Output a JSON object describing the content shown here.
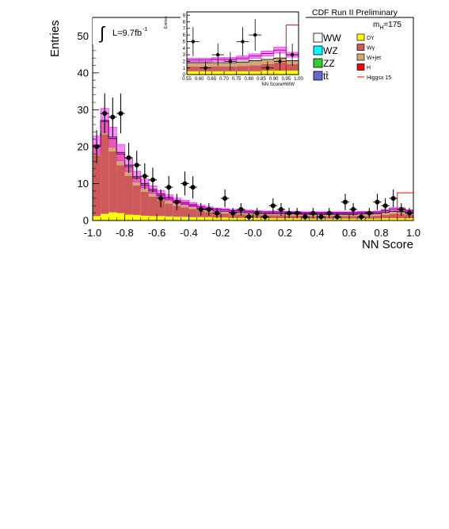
{
  "header": {
    "title": "CDF Run II Preliminary",
    "mass_label": "m",
    "mass_sub": "H",
    "mass_value": "=175"
  },
  "luminosity": {
    "integral_symbol": "∫",
    "text": "L=9.7fb",
    "sup": "-1"
  },
  "legend": {
    "entries": [
      {
        "label": "WW",
        "color": "#ffffff"
      },
      {
        "label": "WZ",
        "color": "#00ffff"
      },
      {
        "label": "ZZ",
        "color": "#33cc33"
      },
      {
        "label": "tt̄",
        "color": "#6666cc"
      },
      {
        "label": "DY",
        "color": "#ffff00"
      },
      {
        "label": "Wγ",
        "color": "#cc5a5a"
      },
      {
        "label": "W+jet",
        "color": "#d2a77a"
      },
      {
        "label": "H",
        "color": "#ff0000"
      },
      {
        "label": "Higgsx 15",
        "color": "#ff0000"
      }
    ]
  },
  "chart_data": [
    {
      "type": "histogram",
      "title": "",
      "xlabel": "NN Score",
      "ylabel": "Entries",
      "xlim": [
        -1.0,
        1.0
      ],
      "ylim": [
        0,
        55
      ],
      "x_ticks": [
        "-1.0",
        "-0.8",
        "-0.6",
        "-0.4",
        "-0.2",
        "-0.0",
        "0.2",
        "0.4",
        "0.6",
        "0.8",
        "1.0"
      ],
      "y_ticks": [
        "0",
        "10",
        "20",
        "30",
        "40",
        "50"
      ],
      "bin_edges": [
        -1.0,
        -0.95,
        -0.9,
        -0.85,
        -0.8,
        -0.75,
        -0.7,
        -0.65,
        -0.6,
        -0.55,
        -0.5,
        -0.45,
        -0.4,
        -0.35,
        -0.3,
        -0.25,
        -0.2,
        -0.15,
        -0.1,
        -0.05,
        0.0,
        0.05,
        0.1,
        0.15,
        0.2,
        0.25,
        0.3,
        0.35,
        0.4,
        0.45,
        0.5,
        0.55,
        0.6,
        0.65,
        0.7,
        0.75,
        0.8,
        0.85,
        0.9,
        0.95,
        1.0
      ],
      "series": [
        {
          "name": "DY",
          "color": "#ffff00",
          "values": [
            1.2,
            1.8,
            2.2,
            2.0,
            1.6,
            1.5,
            1.3,
            1.2,
            1.2,
            1.1,
            1.0,
            1.0,
            0.9,
            0.9,
            0.9,
            0.8,
            0.8,
            0.7,
            0.7,
            0.7,
            0.7,
            0.6,
            0.6,
            0.6,
            0.6,
            0.6,
            0.5,
            0.5,
            0.5,
            0.5,
            0.5,
            0.5,
            0.5,
            0.5,
            0.5,
            0.5,
            0.6,
            0.6,
            0.6,
            0.6
          ]
        },
        {
          "name": "Wγ",
          "color": "#cc5a5a",
          "values": [
            16.5,
            21.5,
            16.5,
            13.0,
            10.5,
            8.0,
            6.5,
            5.3,
            4.3,
            3.5,
            3.0,
            2.6,
            2.2,
            1.7,
            1.4,
            1.2,
            1.1,
            1.0,
            1.0,
            0.9,
            0.8,
            0.8,
            0.8,
            0.8,
            0.7,
            0.7,
            0.7,
            0.7,
            0.7,
            0.7,
            0.7,
            0.7,
            0.7,
            0.7,
            0.7,
            0.8,
            0.9,
            1.2,
            1.2,
            1.0
          ]
        },
        {
          "name": "W+jet",
          "color": "#d2a77a",
          "values": [
            2.5,
            3.5,
            3.5,
            3.0,
            2.5,
            2.0,
            1.8,
            1.5,
            1.3,
            1.2,
            1.0,
            0.9,
            0.8,
            0.7,
            0.6,
            0.6,
            0.6,
            0.6,
            0.5,
            0.5,
            0.5,
            0.5,
            0.5,
            0.5,
            0.5,
            0.5,
            0.5,
            0.5,
            0.5,
            0.5,
            0.5,
            0.5,
            0.5,
            0.6,
            0.6,
            0.6,
            0.7,
            0.7,
            0.6,
            0.5
          ]
        },
        {
          "name": "WW",
          "color": "#ffffff",
          "values": [
            0.2,
            0.3,
            0.4,
            0.4,
            0.4,
            0.4,
            0.4,
            0.4,
            0.4,
            0.4,
            0.4,
            0.4,
            0.4,
            0.4,
            0.4,
            0.4,
            0.4,
            0.4,
            0.4,
            0.4,
            0.4,
            0.4,
            0.4,
            0.4,
            0.4,
            0.4,
            0.4,
            0.4,
            0.4,
            0.4,
            0.4,
            0.4,
            0.4,
            0.4,
            0.4,
            0.4,
            0.5,
            0.6,
            0.7,
            0.5
          ]
        },
        {
          "name": "Higgsx 15",
          "color": "#ff0000",
          "values": [
            0.0,
            0.0,
            0.0,
            0.0,
            0.0,
            0.0,
            0.0,
            0.0,
            0.0,
            0.0,
            0.0,
            0.0,
            0.0,
            0.0,
            0.0,
            0.0,
            0.0,
            0.0,
            0.0,
            0.0,
            0.0,
            0.0,
            0.0,
            0.0,
            0.0,
            0.0,
            0.0,
            0.0,
            0.0,
            0.0,
            0.0,
            0.0,
            0.0,
            0.0,
            0.0,
            0.0,
            0.0,
            0.0,
            7.5,
            7.5
          ]
        }
      ],
      "uncertainty_band": {
        "color": "#ff00ff",
        "relative": 0.12
      },
      "data_points": {
        "x": [
          -0.975,
          -0.925,
          -0.875,
          -0.825,
          -0.775,
          -0.725,
          -0.675,
          -0.625,
          -0.575,
          -0.525,
          -0.475,
          -0.425,
          -0.375,
          -0.325,
          -0.275,
          -0.225,
          -0.175,
          -0.125,
          -0.075,
          -0.025,
          0.025,
          0.075,
          0.125,
          0.175,
          0.225,
          0.275,
          0.325,
          0.375,
          0.425,
          0.475,
          0.525,
          0.575,
          0.625,
          0.675,
          0.725,
          0.775,
          0.825,
          0.875,
          0.925,
          0.975
        ],
        "y": [
          20,
          29,
          28,
          29,
          17,
          15,
          12,
          11,
          6,
          9,
          5,
          10,
          9,
          3,
          3,
          2,
          6,
          2,
          3,
          1,
          2,
          1,
          4,
          3,
          2,
          2,
          1,
          2,
          1,
          2,
          1,
          5,
          3,
          1,
          2,
          5,
          4,
          6,
          3,
          2
        ],
        "err": [
          4.5,
          5.4,
          5.3,
          5.4,
          4.1,
          3.9,
          3.5,
          3.3,
          2.4,
          3.0,
          2.2,
          3.2,
          3.0,
          1.7,
          1.7,
          1.4,
          2.4,
          1.4,
          1.7,
          1.0,
          1.4,
          1.0,
          2.0,
          1.7,
          1.4,
          1.4,
          1.0,
          1.4,
          1.0,
          1.4,
          1.0,
          2.2,
          1.7,
          1.0,
          1.4,
          2.2,
          2.0,
          2.4,
          1.7,
          1.4
        ]
      }
    },
    {
      "type": "histogram",
      "title": "",
      "xlabel": "NN ScoreHWW",
      "ylabel": "Entries",
      "xlim": [
        0.55,
        1.0
      ],
      "ylim": [
        0,
        9.5
      ],
      "x_ticks": [
        "0.55",
        "0.60",
        "0.65",
        "0.70",
        "0.75",
        "0.80",
        "0.85",
        "0.90",
        "0.95",
        "1.00"
      ],
      "y_ticks": [
        "0",
        "1",
        "2",
        "3",
        "4",
        "5",
        "6",
        "7",
        "8",
        "9"
      ],
      "bin_edges": [
        0.55,
        0.6,
        0.65,
        0.7,
        0.75,
        0.8,
        0.85,
        0.9,
        0.95,
        1.0
      ],
      "series": [
        {
          "name": "DY",
          "color": "#ffff00",
          "values": [
            0.5,
            0.5,
            0.5,
            0.5,
            0.5,
            0.5,
            0.6,
            0.6,
            0.6
          ]
        },
        {
          "name": "Wγ",
          "color": "#cc5a5a",
          "values": [
            0.7,
            0.7,
            0.7,
            0.7,
            0.8,
            0.9,
            1.0,
            1.2,
            1.0
          ]
        },
        {
          "name": "W+jet",
          "color": "#d2a77a",
          "values": [
            0.6,
            0.6,
            0.6,
            0.6,
            0.6,
            0.7,
            0.7,
            0.7,
            0.5
          ]
        },
        {
          "name": "WW",
          "color": "#ffffff",
          "values": [
            0.4,
            0.4,
            0.5,
            0.5,
            0.6,
            0.7,
            0.9,
            1.2,
            0.9
          ]
        },
        {
          "name": "Higgsx 15",
          "color": "#ff0000",
          "values": [
            0.0,
            0.0,
            0.0,
            0.0,
            0.0,
            0.0,
            0.0,
            0.0,
            7.5
          ]
        }
      ],
      "uncertainty_band": {
        "color": "#ff00ff",
        "relative": 0.12
      },
      "data_points": {
        "x": [
          0.575,
          0.625,
          0.675,
          0.725,
          0.775,
          0.825,
          0.875,
          0.925,
          0.975
        ],
        "y": [
          5,
          1,
          3,
          2,
          5,
          6,
          1,
          2,
          3
        ],
        "err": [
          2.2,
          1.0,
          1.7,
          1.4,
          2.2,
          2.4,
          1.0,
          1.4,
          1.7
        ]
      }
    }
  ]
}
